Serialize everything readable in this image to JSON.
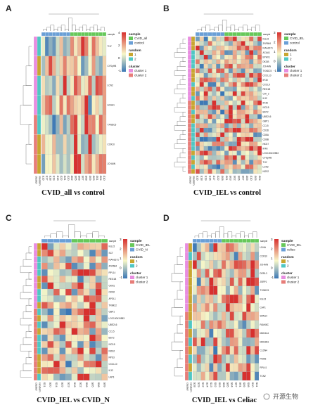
{
  "palette": {
    "low": "#3a77b5",
    "mid": "#f7f7c8",
    "high": "#d7312f",
    "sample_a": "#6a9fd6",
    "sample_b": "#66c85a",
    "random_1": "#c8a630",
    "random_2": "#4fc7c3",
    "cluster_1": "#e88de0",
    "cluster_2": "#e77d79"
  },
  "watermark": "开源生物",
  "chart_data": [
    {
      "type": "heatmap",
      "panel": "A",
      "title": "CVID_all vs control",
      "row_annotations": [
        "cluster",
        "random"
      ],
      "col_annotation": "sample",
      "legend": {
        "colorbar": [
          "4",
          "2",
          "0",
          "-1"
        ],
        "sample": {
          "title": "sample",
          "items": [
            "CVID_all",
            "control"
          ]
        },
        "random": {
          "title": "random",
          "items": [
            "1",
            "2"
          ]
        },
        "cluster": {
          "title": "cluster",
          "items": [
            "cluster 1",
            "cluster 2"
          ]
        }
      },
      "row_labels": [
        "THY",
        "CYSpHB",
        "LCN2",
        "ACAA1",
        "TXNDC5",
        "CCR10",
        "JCHAIN"
      ],
      "col_labels": [
        "S15",
        "S17",
        "S18",
        "S19",
        "S16",
        "S22",
        "S21",
        "S20",
        "S02",
        "S05",
        "S06",
        "S07",
        "S08",
        "S09",
        "S03",
        "S01",
        "S04",
        "S10"
      ]
    },
    {
      "type": "heatmap",
      "panel": "B",
      "title": "CVID_IEL vs  control",
      "row_annotations": [
        "cluster",
        "random"
      ],
      "col_annotation": "sample",
      "legend": {
        "colorbar": [
          "3",
          "2",
          "1",
          "0",
          "-1"
        ],
        "sample": {
          "title": "sample",
          "items": [
            "CVID_IEL",
            "control"
          ]
        },
        "random": {
          "title": "random",
          "items": [
            "1",
            "2"
          ]
        },
        "cluster": {
          "title": "cluster",
          "items": [
            "cluster 1",
            "cluster 2"
          ]
        }
      },
      "row_labels": [
        "IGLL5",
        "ZNF684",
        "KIAA1671",
        "ACAA1",
        "EPHX1",
        "DKGB",
        "JCHAIN",
        "TXNDC5",
        "CXCL10",
        "IFI30",
        "CXCL9",
        "REG1B",
        "CHI_2",
        "IL32",
        "IFI35",
        "ISG15",
        "BST2",
        "UBE2L6",
        "GBP1",
        "CCL5",
        "CD3D",
        "CD8A",
        "CD8B",
        "NKG7",
        "IRF8",
        "LOC100419583",
        "CYSpHB",
        "THY",
        "LCN2",
        "NOS2"
      ],
      "col_labels": [
        "S15",
        "S18",
        "S19",
        "S16",
        "S17",
        "S22",
        "S08",
        "S01",
        "S03",
        "S02",
        "S06",
        "S07",
        "S09",
        "S10",
        "S05",
        "S04"
      ]
    },
    {
      "type": "heatmap",
      "panel": "C",
      "title": "CVID_IEL vs CVID_N",
      "row_annotations": [
        "cluster",
        "random"
      ],
      "col_annotation": "sample",
      "legend": {
        "colorbar": [
          "3",
          "2",
          "1",
          "0",
          "-1"
        ],
        "sample": {
          "title": "sample",
          "items": [
            "CVID_IEL",
            "CVID_N"
          ]
        },
        "random": {
          "title": "random",
          "items": [
            "1",
            "2"
          ]
        },
        "cluster": {
          "title": "cluster",
          "items": [
            "cluster 1",
            "cluster 2"
          ]
        }
      },
      "row_labels": [
        "IGLL5",
        "SCT",
        "KIAA1671",
        "ZNF684",
        "RPL14",
        "REG1B",
        "OKN1",
        "OKN2",
        "APOL1",
        "TRIM22",
        "GBP1",
        "LOC100419583",
        "UBE2L6",
        "CCL5",
        "BST2",
        "ISG15",
        "NOS2",
        "RPS3",
        "CXCL10",
        "IL32",
        "LAP3"
      ],
      "col_labels": [
        "S21",
        "S20",
        "S24",
        "S25",
        "S23",
        "S16",
        "S22",
        "S06",
        "S05",
        "S08",
        "S09"
      ]
    },
    {
      "type": "heatmap",
      "panel": "D",
      "title": "CVID_IEL vs  Celiac",
      "row_annotations": [
        "cluster",
        "random"
      ],
      "col_annotation": "sample",
      "legend": {
        "colorbar": [
          "3",
          "2",
          "1",
          "0",
          "-1"
        ],
        "sample": {
          "title": "sample",
          "items": [
            "CVID_IEL",
            "celiac"
          ]
        },
        "random": {
          "title": "random",
          "items": [
            "1",
            "2"
          ]
        },
        "cluster": {
          "title": "cluster",
          "items": [
            "cluster 1",
            "cluster 2"
          ]
        }
      },
      "row_labels": [
        "LDHA",
        "CCR10",
        "JCHAIN",
        "DERL3",
        "JSRP1",
        "TXNDC5",
        "IGLL5",
        "CAP1",
        "SPAG4",
        "FAM46C",
        "MAN1A1",
        "MAN2B1",
        "CLDN4",
        "PDHB",
        "RPL41",
        "TCN2"
      ],
      "col_labels": [
        "S18",
        "S19",
        "S12",
        "S14",
        "S13",
        "S02",
        "S03",
        "S06",
        "S05",
        "S04",
        "S07",
        "S01",
        "S09",
        "S08",
        "S10",
        "S11"
      ]
    }
  ]
}
